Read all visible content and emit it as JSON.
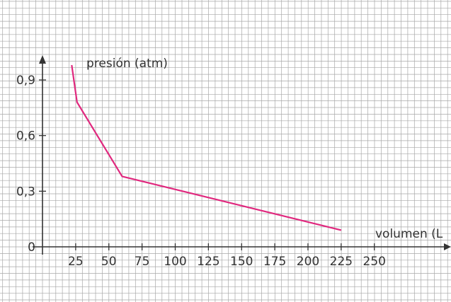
{
  "chart_data": {
    "type": "line",
    "title": "",
    "xlabel": "volumen (L",
    "ylabel": "presión (atm)",
    "x_ticks": [
      "25",
      "50",
      "75",
      "100",
      "125",
      "150",
      "175",
      "200",
      "225",
      "250"
    ],
    "y_ticks": [
      "0",
      "0,3",
      "0,6",
      "0,9"
    ],
    "xlim": [
      0,
      300
    ],
    "ylim": [
      0,
      1.0
    ],
    "grid": true,
    "series": [
      {
        "x": [
          22,
          26,
          60,
          225
        ],
        "y": [
          0.98,
          0.78,
          0.38,
          0.09
        ]
      }
    ]
  },
  "colors": {
    "line": "#e0287e",
    "grid": "#a8a8a8",
    "axis": "#333333",
    "text": "#333333",
    "background": "#ffffff"
  }
}
